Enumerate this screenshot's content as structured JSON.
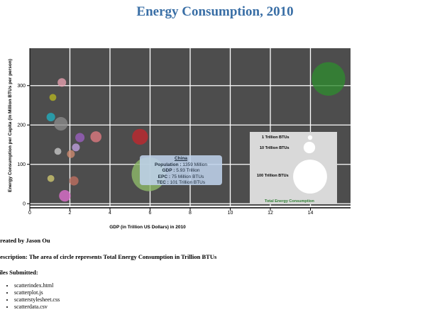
{
  "page": {
    "title": "Energy Consumption, 2010",
    "created_by": "Created by Jason Ou",
    "description": "Description: The area of circle represents Total Energy Consumption in Trillion BTUs",
    "files_heading": "Files Submitted:",
    "files": [
      "scatterindex.html",
      "scatterplot.js",
      "scatterstylesheet.css",
      "scatterdata.csv"
    ]
  },
  "colors": {
    "plot_background": "#4d4d4d",
    "grid": "#ffffff",
    "title": "#3a6fa6",
    "legend_background": "#d9d9d9",
    "legend_title": "#2e7d32"
  },
  "chart_data": {
    "type": "scatter",
    "title": "Energy Consumption, 2010",
    "xlabel": "GDP (in Trillion US Dollars) in 2010",
    "ylabel": "Energy Consumption per Capita (in Million BTUs per person)",
    "xlim": [
      0,
      16
    ],
    "ylim": [
      -5,
      395
    ],
    "xticks": [
      0,
      2,
      4,
      6,
      8,
      10,
      12,
      14
    ],
    "yticks": [
      0,
      100,
      200,
      300
    ],
    "grid": true,
    "size_encoding": "area ~ Total Energy Consumption (Trillion BTUs)",
    "points": [
      {
        "x": 14.9,
        "y": 317,
        "size": 98,
        "color": "#2e8b2e"
      },
      {
        "x": 5.93,
        "y": 75,
        "size": 101,
        "color": "#8fbc6a",
        "label": "China"
      },
      {
        "x": 5.5,
        "y": 170,
        "size": 20,
        "color": "#c1272d"
      },
      {
        "x": 1.6,
        "y": 308,
        "size": 5,
        "color": "#e8a0b0"
      },
      {
        "x": 1.15,
        "y": 270,
        "size": 3,
        "color": "#b5b520"
      },
      {
        "x": 1.05,
        "y": 220,
        "size": 5,
        "color": "#20b0c0"
      },
      {
        "x": 1.55,
        "y": 203,
        "size": 14,
        "color": "#8a8a8a"
      },
      {
        "x": 3.3,
        "y": 170,
        "size": 9,
        "color": "#e07a80"
      },
      {
        "x": 2.5,
        "y": 168,
        "size": 6,
        "color": "#9b5fc0"
      },
      {
        "x": 2.3,
        "y": 143,
        "size": 4,
        "color": "#c0a0e0"
      },
      {
        "x": 1.4,
        "y": 133,
        "size": 3,
        "color": "#c8c8c8"
      },
      {
        "x": 2.05,
        "y": 126,
        "size": 4,
        "color": "#d08a70"
      },
      {
        "x": 1.05,
        "y": 64,
        "size": 3,
        "color": "#d0c870"
      },
      {
        "x": 2.2,
        "y": 58,
        "size": 6,
        "color": "#c07060"
      },
      {
        "x": 1.75,
        "y": 20,
        "size": 10,
        "color": "#e070d0"
      }
    ],
    "legend": {
      "title": "Total Energy Consumption",
      "placement": "bottom-right",
      "entries": [
        {
          "label": "1 Trillion BTUs",
          "size": 1
        },
        {
          "label": "10 Trillion BTUs",
          "size": 10
        },
        {
          "label": "100 Trillion BTUs",
          "size": 100
        }
      ]
    },
    "tooltip": {
      "title": "China",
      "lines": [
        {
          "key": "Population :",
          "value": "1359 Million"
        },
        {
          "key": "GDP :",
          "value": "5.93 Trillion"
        },
        {
          "key": "EPC :",
          "value": "75 Million BTUs"
        },
        {
          "key": "TEC :",
          "value": "101 Trillion BTUs"
        }
      ]
    }
  }
}
